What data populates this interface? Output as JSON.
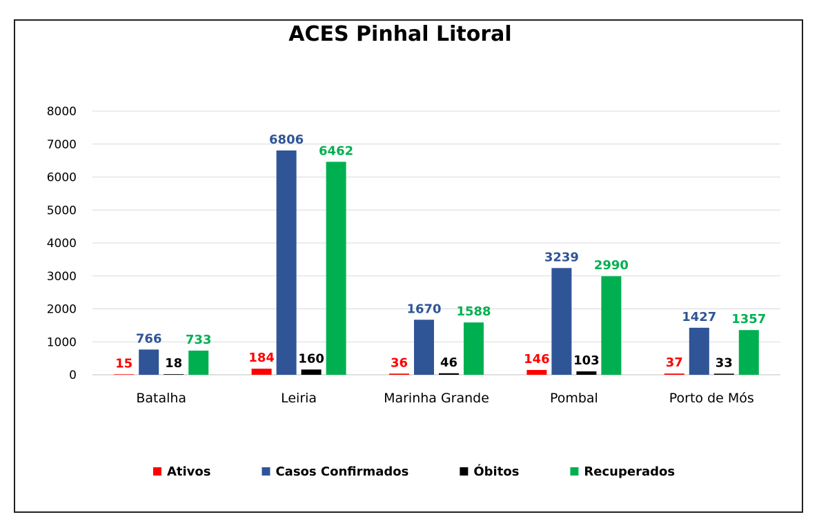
{
  "chart_data": {
    "type": "bar",
    "title": "ACES Pinhal Litoral",
    "xlabel": "",
    "ylabel": "",
    "ylim": [
      0,
      8000
    ],
    "yticks": [
      0,
      1000,
      2000,
      3000,
      4000,
      5000,
      6000,
      7000,
      8000
    ],
    "grid": true,
    "legend_position": "bottom",
    "categories": [
      "Batalha",
      "Leiria",
      "Marinha Grande",
      "Pombal",
      "Porto de Mós"
    ],
    "series": [
      {
        "name": "Ativos",
        "color": "#ff0000",
        "values": [
          15,
          184,
          36,
          146,
          37
        ]
      },
      {
        "name": "Casos Confirmados",
        "color": "#2f5597",
        "values": [
          766,
          6806,
          1670,
          3239,
          1427
        ]
      },
      {
        "name": "Óbitos",
        "color": "#000000",
        "values": [
          18,
          160,
          46,
          103,
          33
        ]
      },
      {
        "name": "Recuperados",
        "color": "#00b050",
        "values": [
          733,
          6462,
          1588,
          2990,
          1357
        ]
      }
    ]
  }
}
